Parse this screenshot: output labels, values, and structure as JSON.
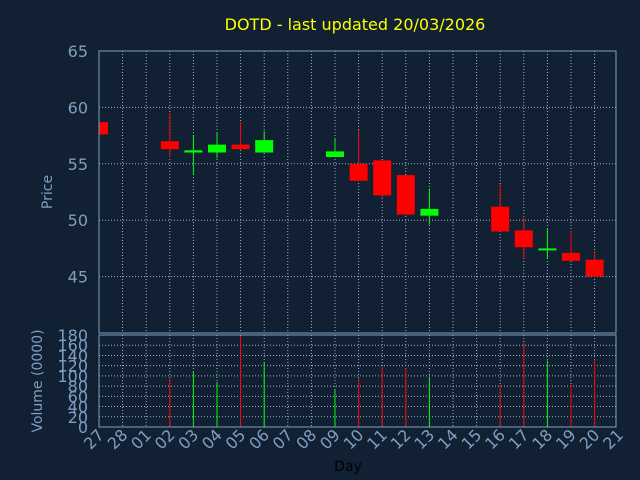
{
  "chart_data": [
    {
      "type": "candlestick",
      "title": "DOTD - last updated 20/03/2026",
      "ylabel": "Price",
      "ylim": [
        40,
        65
      ],
      "yticks": [
        45,
        50,
        55,
        60,
        65
      ],
      "grid": true,
      "categories": [
        "27",
        "28",
        "01",
        "02",
        "03",
        "04",
        "05",
        "06",
        "07",
        "08",
        "09",
        "10",
        "11",
        "12",
        "13",
        "14",
        "15",
        "16",
        "17",
        "18",
        "19",
        "20",
        "21"
      ],
      "candles": [
        {
          "day": "27",
          "open": 58.7,
          "close": 57.6,
          "high": 58.7,
          "low": 57.6,
          "color": "down"
        },
        {
          "day": "02",
          "open": 57.0,
          "close": 56.3,
          "high": 59.5,
          "low": 55.6,
          "color": "down"
        },
        {
          "day": "03",
          "open": 56.0,
          "close": 56.2,
          "high": 57.5,
          "low": 54.0,
          "color": "up"
        },
        {
          "day": "04",
          "open": 56.0,
          "close": 56.7,
          "high": 57.8,
          "low": 55.5,
          "color": "up"
        },
        {
          "day": "05",
          "open": 56.7,
          "close": 56.3,
          "high": 58.7,
          "low": 56.2,
          "color": "down"
        },
        {
          "day": "06",
          "open": 56.0,
          "close": 57.1,
          "high": 57.9,
          "low": 56.0,
          "color": "up"
        },
        {
          "day": "09",
          "open": 55.6,
          "close": 56.1,
          "high": 57.3,
          "low": 55.6,
          "color": "up"
        },
        {
          "day": "10",
          "open": 55.0,
          "close": 53.5,
          "high": 58.0,
          "low": 53.5,
          "color": "down"
        },
        {
          "day": "11",
          "open": 55.3,
          "close": 52.2,
          "high": 55.3,
          "low": 52.0,
          "color": "down"
        },
        {
          "day": "12",
          "open": 54.0,
          "close": 50.5,
          "high": 54.0,
          "low": 50.4,
          "color": "down"
        },
        {
          "day": "13",
          "open": 50.4,
          "close": 51.0,
          "high": 52.8,
          "low": 49.6,
          "color": "up"
        },
        {
          "day": "16",
          "open": 51.2,
          "close": 49.0,
          "high": 53.2,
          "low": 49.0,
          "color": "down"
        },
        {
          "day": "17",
          "open": 49.1,
          "close": 47.6,
          "high": 50.2,
          "low": 46.6,
          "color": "down"
        },
        {
          "day": "18",
          "open": 47.4,
          "close": 47.5,
          "high": 49.3,
          "low": 46.6,
          "color": "up"
        },
        {
          "day": "19",
          "open": 47.1,
          "close": 46.4,
          "high": 49.0,
          "low": 46.4,
          "color": "down"
        },
        {
          "day": "20",
          "open": 46.5,
          "close": 45.0,
          "high": 47.3,
          "low": 45.0,
          "color": "down"
        }
      ],
      "colors": {
        "up": "#00ff00",
        "down": "#ff0000"
      }
    },
    {
      "type": "bar",
      "ylabel": "Volume (0000)",
      "xlabel": "Day",
      "ylim": [
        0,
        180
      ],
      "yticks": [
        0,
        20,
        40,
        60,
        80,
        100,
        120,
        140,
        160,
        180
      ],
      "grid": true,
      "categories": [
        "27",
        "28",
        "01",
        "02",
        "03",
        "04",
        "05",
        "06",
        "07",
        "08",
        "09",
        "10",
        "11",
        "12",
        "13",
        "14",
        "15",
        "16",
        "17",
        "18",
        "19",
        "20",
        "21"
      ],
      "bars": [
        {
          "day": "02",
          "value": 95,
          "color": "down"
        },
        {
          "day": "03",
          "value": 108,
          "color": "up"
        },
        {
          "day": "04",
          "value": 88,
          "color": "up"
        },
        {
          "day": "05",
          "value": 178,
          "color": "down"
        },
        {
          "day": "06",
          "value": 127,
          "color": "up"
        },
        {
          "day": "09",
          "value": 73,
          "color": "up"
        },
        {
          "day": "10",
          "value": 95,
          "color": "down"
        },
        {
          "day": "11",
          "value": 118,
          "color": "down"
        },
        {
          "day": "12",
          "value": 115,
          "color": "down"
        },
        {
          "day": "13",
          "value": 96,
          "color": "up"
        },
        {
          "day": "16",
          "value": 82,
          "color": "down"
        },
        {
          "day": "17",
          "value": 165,
          "color": "down"
        },
        {
          "day": "18",
          "value": 130,
          "color": "up"
        },
        {
          "day": "19",
          "value": 83,
          "color": "down"
        },
        {
          "day": "20",
          "value": 132,
          "color": "down"
        }
      ]
    }
  ],
  "theme": {
    "background": "#112033",
    "plot_bg": "#112033",
    "frame": "#7f9fc0",
    "grid": "#9fb4c8",
    "title_color": "#ffff00",
    "tick_color": "#7f9fc0",
    "xlabel_color": "#000000"
  }
}
